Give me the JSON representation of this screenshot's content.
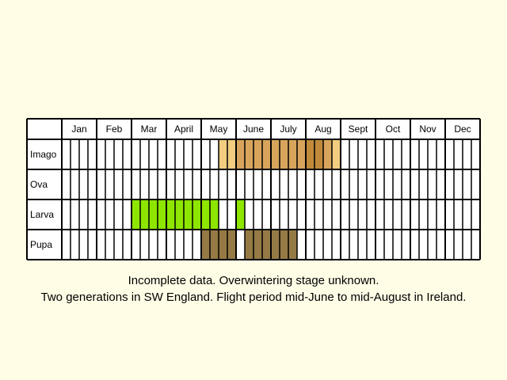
{
  "chart_data": {
    "type": "table",
    "months": [
      "Jan",
      "Feb",
      "Mar",
      "April",
      "May",
      "June",
      "July",
      "Aug",
      "Sept",
      "Oct",
      "Nov",
      "Dec"
    ],
    "stages": [
      "Imago",
      "Ova",
      "Larva",
      "Pupa"
    ],
    "weeks_per_month": 4,
    "colors": {
      "imago_light": "#f2cd7f",
      "imago_mid": "#d8a45c",
      "imago_dark": "#c08a3a",
      "larva": "#8ee600",
      "pupa": "#957a45",
      "cell_border": "#000000",
      "background": "#fffde6",
      "cell_background": "#ffffff"
    },
    "bands": [
      {
        "stage": "Imago",
        "start_week": 19,
        "end_week": 20,
        "shade": "light"
      },
      {
        "stage": "Imago",
        "start_week": 21,
        "end_week": 28,
        "shade": "mid"
      },
      {
        "stage": "Imago",
        "start_week": 29,
        "end_week": 30,
        "shade": "dark"
      },
      {
        "stage": "Imago",
        "start_week": 31,
        "end_week": 31,
        "shade": "mid"
      },
      {
        "stage": "Imago",
        "start_week": 32,
        "end_week": 32,
        "shade": "light"
      },
      {
        "stage": "Larva",
        "start_week": 9,
        "end_week": 18,
        "shade": "larva"
      },
      {
        "stage": "Larva",
        "start_week": 21,
        "end_week": 21,
        "shade": "larva"
      },
      {
        "stage": "Pupa",
        "start_week": 17,
        "end_week": 20,
        "shade": "pupa"
      },
      {
        "stage": "Pupa",
        "start_week": 22,
        "end_week": 27,
        "shade": "pupa"
      }
    ]
  },
  "captions": {
    "line1": "Incomplete data. Overwintering stage unknown.",
    "line2": "Two generations in SW England. Flight period mid-June to mid-August in Ireland."
  }
}
